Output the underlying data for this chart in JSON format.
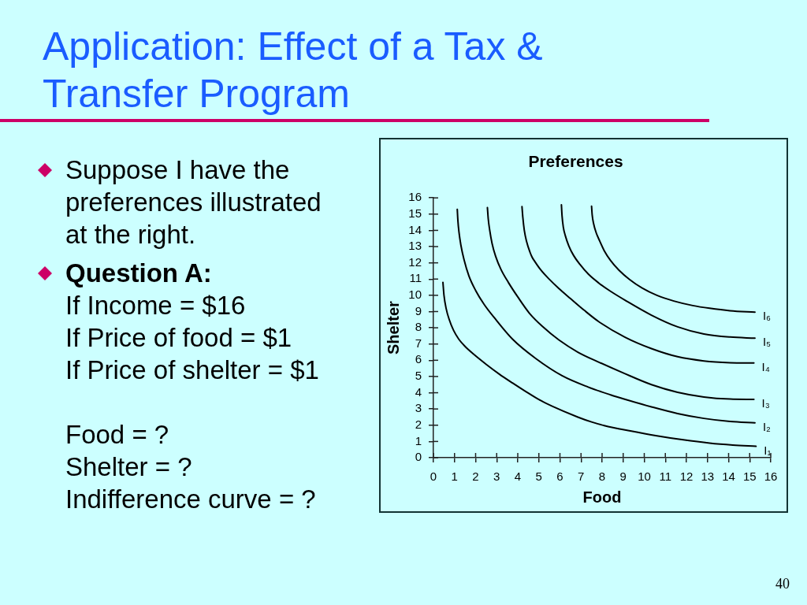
{
  "chart_data": {
    "type": "line",
    "title": "Application: Effect of a Tax & Transfer Program",
    "subtitle": "Preferences",
    "xlabel": "Food",
    "ylabel": "Shelter",
    "xlim": [
      0,
      16
    ],
    "xticks": [
      0,
      1,
      2,
      3,
      4,
      5,
      6,
      7,
      8,
      9,
      10,
      11,
      12,
      13,
      14,
      15,
      16
    ],
    "ylim": [
      0,
      16
    ],
    "yticks": [
      0,
      1,
      2,
      3,
      4,
      5,
      6,
      7,
      8,
      9,
      10,
      11,
      12,
      13,
      14,
      15,
      16
    ],
    "marker": "none",
    "series": [
      {
        "name": "I₁",
        "color": "#000000",
        "x": [
          0.45,
          0.5,
          0.6,
          0.75,
          0.95,
          1.2,
          1.5,
          1.88,
          2.5,
          3.12,
          3.75,
          4.37,
          5.0,
          5.61,
          6.85,
          7.5,
          8.1,
          9.34,
          10.6,
          11.85,
          13.1,
          14.2,
          15.3
        ],
        "values": [
          10.8,
          10.0,
          9.2,
          8.5,
          7.85,
          7.3,
          6.85,
          6.4,
          5.75,
          5.15,
          4.6,
          4.08,
          3.58,
          3.18,
          2.5,
          2.2,
          1.98,
          1.65,
          1.35,
          1.1,
          0.9,
          0.78,
          0.7
        ]
      },
      {
        "name": "I₂",
        "color": "#000000",
        "x": [
          1.13,
          1.16,
          1.21,
          1.3,
          1.45,
          1.68,
          2.0,
          2.4,
          2.9,
          3.75,
          4.86,
          6.1,
          7.34,
          8.4,
          9.1,
          10.34,
          11.58,
          12.83,
          14.07,
          15.25
        ],
        "values": [
          15.3,
          14.6,
          13.9,
          13.1,
          12.2,
          11.2,
          10.3,
          9.45,
          8.6,
          7.3,
          6.1,
          5.05,
          4.35,
          3.87,
          3.59,
          3.13,
          2.72,
          2.42,
          2.23,
          2.15
        ]
      },
      {
        "name": "I₃",
        "color": "#000000",
        "x": [
          2.56,
          2.6,
          2.67,
          2.78,
          2.95,
          3.2,
          3.55,
          4.0,
          4.55,
          5.2,
          5.95,
          6.85,
          7.85,
          9.0,
          10.34,
          11.58,
          12.83,
          14.07,
          15.2
        ],
        "values": [
          15.4,
          14.7,
          14.0,
          13.2,
          12.4,
          11.6,
          10.8,
          9.9,
          8.9,
          8.05,
          7.25,
          6.5,
          5.88,
          5.22,
          4.5,
          4.03,
          3.74,
          3.61,
          3.59
        ]
      },
      {
        "name": "I₄",
        "color": "#000000",
        "x": [
          4.2,
          4.24,
          4.31,
          4.42,
          4.58,
          4.68,
          4.8,
          5.1,
          5.5,
          5.95,
          6.5,
          7.15,
          7.85,
          9.09,
          10.34,
          11.58,
          12.83,
          14.07,
          15.2
        ],
        "values": [
          15.46,
          14.8,
          14.0,
          13.3,
          12.65,
          12.35,
          12.1,
          11.55,
          10.98,
          10.42,
          9.8,
          9.08,
          8.37,
          7.42,
          6.72,
          6.22,
          5.96,
          5.85,
          5.83
        ]
      },
      {
        "name": "I₅",
        "color": "#000000",
        "x": [
          6.07,
          6.1,
          6.16,
          6.26,
          6.42,
          6.65,
          6.95,
          7.35,
          7.85,
          8.4,
          9.09,
          10.34,
          11.58,
          12.83,
          14.07,
          15.25
        ],
        "values": [
          15.57,
          14.9,
          14.2,
          13.65,
          13.05,
          12.45,
          11.9,
          11.3,
          10.75,
          10.25,
          9.7,
          8.78,
          8.06,
          7.62,
          7.43,
          7.36
        ]
      },
      {
        "name": "I₆",
        "color": "#000000",
        "x": [
          7.5,
          7.53,
          7.6,
          7.72,
          7.85,
          8.1,
          8.4,
          8.8,
          9.3,
          9.9,
          10.6,
          11.4,
          12.3,
          13.1,
          14.07,
          15.25
        ],
        "values": [
          15.49,
          14.95,
          14.4,
          13.85,
          13.45,
          12.75,
          12.15,
          11.55,
          10.98,
          10.45,
          10.0,
          9.65,
          9.37,
          9.2,
          9.05,
          8.96
        ]
      }
    ],
    "annotations": [
      "Suppose I have the preferences illustrated at the right.",
      "Question A:\nIf Income = $16\nIf Price of food = $1\nIf Price of shelter = $1\n\nFood = ?\nShelter = ?\nIndifference curve = ?",
      "40"
    ]
  }
}
